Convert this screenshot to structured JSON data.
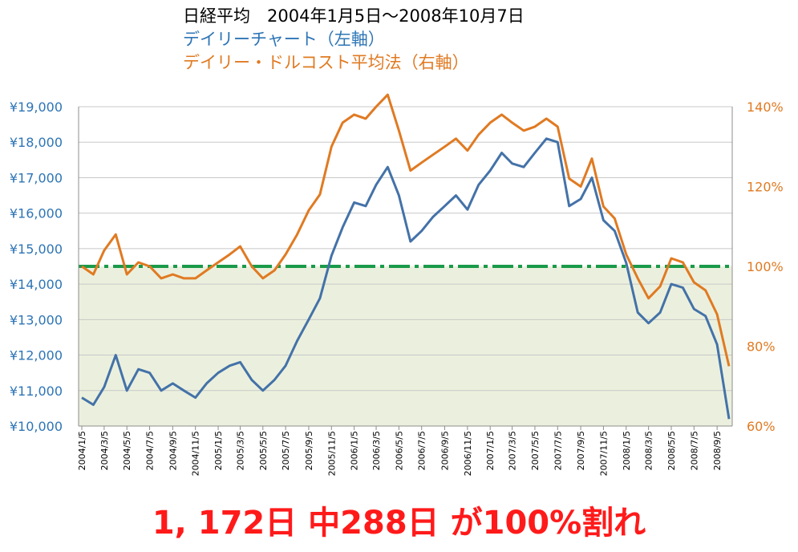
{
  "title": {
    "main": "日経平均　2004年1月5日～2008年10月7日",
    "left_series": "デイリーチャート（左軸）",
    "right_series": "デイリー・ドルコスト平均法（右軸）"
  },
  "footer_text": "1, 172日 中288日 が100%割れ",
  "colors": {
    "left_series": "#4472a8",
    "right_series": "#e07a22",
    "baseline": "#1a9a4a",
    "shade": "#ebf0de",
    "grid": "#c8c8c8",
    "left_axis_text": "#2e75b6",
    "right_axis_text": "#e07a22",
    "footer": "#ff1a1a"
  },
  "chart_data": {
    "type": "line",
    "x_labels": [
      "2004/1/5",
      "2004/3/5",
      "2004/5/5",
      "2004/7/5",
      "2004/9/5",
      "2004/11/5",
      "2005/1/5",
      "2005/3/5",
      "2005/5/5",
      "2005/7/5",
      "2005/9/5",
      "2005/11/5",
      "2006/1/5",
      "2006/3/5",
      "2006/5/5",
      "2006/7/5",
      "2006/9/5",
      "2006/11/5",
      "2007/1/5",
      "2007/3/5",
      "2007/5/5",
      "2007/7/5",
      "2007/9/5",
      "2007/11/5",
      "2008/1/5",
      "2008/3/5",
      "2008/5/5",
      "2008/7/5",
      "2008/9/5"
    ],
    "y_left": {
      "min": 10000,
      "max": 19000,
      "ticks": [
        "¥10,000",
        "¥11,000",
        "¥12,000",
        "¥13,000",
        "¥14,000",
        "¥15,000",
        "¥16,000",
        "¥17,000",
        "¥18,000",
        "¥19,000"
      ]
    },
    "y_right": {
      "min": 60,
      "max": 140,
      "ticks": [
        "60%",
        "80%",
        "100%",
        "120%",
        "140%"
      ],
      "unit": "%"
    },
    "baseline": {
      "value": 100,
      "axis": "right",
      "style": "dash-dot"
    },
    "shaded_region": "below 100% baseline",
    "grid": "horizontal",
    "series": [
      {
        "axis": "left",
        "color": "#4472a8",
        "x": [
          "2004/1/5",
          "2004/2/5",
          "2004/3/5",
          "2004/4/5",
          "2004/5/5",
          "2004/6/5",
          "2004/7/5",
          "2004/8/5",
          "2004/9/5",
          "2004/10/5",
          "2004/11/5",
          "2004/12/5",
          "2005/1/5",
          "2005/2/5",
          "2005/3/5",
          "2005/4/5",
          "2005/5/5",
          "2005/6/5",
          "2005/7/5",
          "2005/8/5",
          "2005/9/5",
          "2005/10/5",
          "2005/11/5",
          "2005/12/5",
          "2006/1/5",
          "2006/2/5",
          "2006/3/5",
          "2006/4/5",
          "2006/5/5",
          "2006/6/5",
          "2006/7/5",
          "2006/8/5",
          "2006/9/5",
          "2006/10/5",
          "2006/11/5",
          "2006/12/5",
          "2007/1/5",
          "2007/2/5",
          "2007/3/5",
          "2007/4/5",
          "2007/5/5",
          "2007/6/5",
          "2007/7/5",
          "2007/8/5",
          "2007/9/5",
          "2007/10/5",
          "2007/11/5",
          "2007/12/5",
          "2008/1/5",
          "2008/2/5",
          "2008/3/5",
          "2008/4/5",
          "2008/5/5",
          "2008/6/5",
          "2008/7/5",
          "2008/8/5",
          "2008/9/5",
          "2008/10/7"
        ],
        "values": [
          10800,
          10600,
          11100,
          12000,
          11000,
          11600,
          11500,
          11000,
          11200,
          11000,
          10800,
          11200,
          11500,
          11700,
          11800,
          11300,
          11000,
          11300,
          11700,
          12400,
          13000,
          13600,
          14800,
          15600,
          16300,
          16200,
          16800,
          17300,
          16500,
          15200,
          15500,
          15900,
          16200,
          16500,
          16100,
          16800,
          17200,
          17700,
          17400,
          17300,
          17700,
          18100,
          18000,
          16200,
          16400,
          17000,
          15800,
          15500,
          14600,
          13200,
          12900,
          13200,
          14000,
          13900,
          13300,
          13100,
          12300,
          10200
        ]
      },
      {
        "axis": "right",
        "color": "#e07a22",
        "x": [
          "2004/1/5",
          "2004/2/5",
          "2004/3/5",
          "2004/4/5",
          "2004/5/5",
          "2004/6/5",
          "2004/7/5",
          "2004/8/5",
          "2004/9/5",
          "2004/10/5",
          "2004/11/5",
          "2004/12/5",
          "2005/1/5",
          "2005/2/5",
          "2005/3/5",
          "2005/4/5",
          "2005/5/5",
          "2005/6/5",
          "2005/7/5",
          "2005/8/5",
          "2005/9/5",
          "2005/10/5",
          "2005/11/5",
          "2005/12/5",
          "2006/1/5",
          "2006/2/5",
          "2006/3/5",
          "2006/4/5",
          "2006/5/5",
          "2006/6/5",
          "2006/7/5",
          "2006/8/5",
          "2006/9/5",
          "2006/10/5",
          "2006/11/5",
          "2006/12/5",
          "2007/1/5",
          "2007/2/5",
          "2007/3/5",
          "2007/4/5",
          "2007/5/5",
          "2007/6/5",
          "2007/7/5",
          "2007/8/5",
          "2007/9/5",
          "2007/10/5",
          "2007/11/5",
          "2007/12/5",
          "2008/1/5",
          "2008/2/5",
          "2008/3/5",
          "2008/4/5",
          "2008/5/5",
          "2008/6/5",
          "2008/7/5",
          "2008/8/5",
          "2008/9/5",
          "2008/10/7"
        ],
        "values": [
          100,
          98,
          104,
          108,
          98,
          101,
          100,
          97,
          98,
          97,
          97,
          99,
          101,
          103,
          105,
          100,
          97,
          99,
          103,
          108,
          114,
          118,
          130,
          136,
          138,
          137,
          140,
          143,
          134,
          124,
          126,
          128,
          130,
          132,
          129,
          133,
          136,
          138,
          136,
          134,
          135,
          137,
          135,
          122,
          120,
          127,
          115,
          112,
          103,
          97,
          92,
          95,
          102,
          101,
          96,
          94,
          88,
          75
        ]
      }
    ]
  }
}
